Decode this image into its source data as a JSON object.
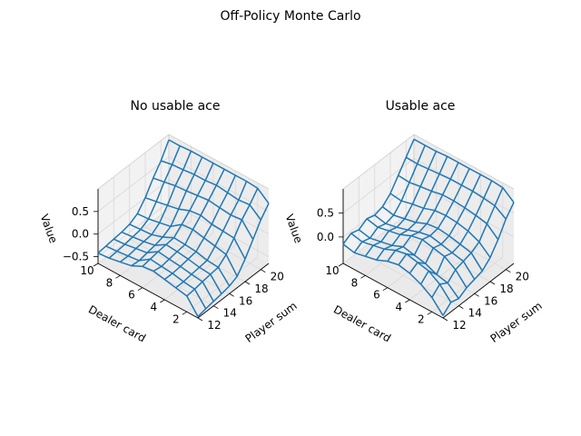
{
  "figure": {
    "suptitle": "Off-Policy Monte Carlo"
  },
  "chart_data": [
    {
      "type": "surface",
      "title": "No usable ace",
      "xlabel": "Dealer card",
      "ylabel": "Player sum",
      "zlabel": "Value",
      "x_ticks": [
        "10",
        "8",
        "6",
        "4",
        "2"
      ],
      "y_ticks": [
        "12",
        "14",
        "16",
        "18",
        "20"
      ],
      "z_ticks": [
        "0.5",
        "0.0",
        "−0.5"
      ],
      "dealer_cards": [
        1,
        2,
        3,
        4,
        5,
        6,
        7,
        8,
        9,
        10
      ],
      "player_sums": [
        12,
        13,
        14,
        15,
        16,
        17,
        18,
        19,
        20,
        21
      ],
      "zlim": [
        -0.65,
        1.0
      ],
      "values": [
        [
          -0.62,
          -0.58,
          -0.55,
          -0.52,
          -0.48,
          -0.4,
          -0.15,
          0.15,
          0.45,
          0.68
        ],
        [
          -0.3,
          -0.28,
          -0.25,
          -0.22,
          -0.2,
          -0.05,
          0.18,
          0.45,
          0.65,
          0.88
        ],
        [
          -0.25,
          -0.25,
          -0.22,
          -0.2,
          -0.18,
          0.0,
          0.2,
          0.42,
          0.62,
          0.9
        ],
        [
          -0.2,
          -0.2,
          -0.18,
          -0.15,
          -0.12,
          0.05,
          0.22,
          0.45,
          0.65,
          0.9
        ],
        [
          -0.15,
          -0.18,
          -0.15,
          -0.12,
          -0.1,
          0.1,
          0.28,
          0.48,
          0.68,
          0.9
        ],
        [
          -0.18,
          -0.15,
          -0.12,
          -0.1,
          -0.08,
          0.08,
          0.25,
          0.45,
          0.65,
          0.9
        ],
        [
          -0.3,
          -0.32,
          -0.28,
          -0.25,
          -0.2,
          -0.1,
          0.15,
          0.42,
          0.65,
          0.9
        ],
        [
          -0.35,
          -0.35,
          -0.32,
          -0.3,
          -0.28,
          -0.15,
          0.1,
          0.4,
          0.62,
          0.9
        ],
        [
          -0.4,
          -0.38,
          -0.36,
          -0.33,
          -0.3,
          -0.2,
          0.05,
          0.35,
          0.6,
          0.88
        ],
        [
          -0.42,
          -0.4,
          -0.38,
          -0.36,
          -0.32,
          -0.22,
          0.0,
          0.3,
          0.55,
          0.88
        ]
      ]
    },
    {
      "type": "surface",
      "title": "Usable ace",
      "xlabel": "Dealer card",
      "ylabel": "Player sum",
      "zlabel": "Value",
      "x_ticks": [
        "10",
        "8",
        "6",
        "4",
        "2"
      ],
      "y_ticks": [
        "12",
        "14",
        "16",
        "18",
        "20"
      ],
      "z_ticks": [
        "0.5",
        "0.0"
      ],
      "dealer_cards": [
        1,
        2,
        3,
        4,
        5,
        6,
        7,
        8,
        9,
        10
      ],
      "player_sums": [
        12,
        13,
        14,
        15,
        16,
        17,
        18,
        19,
        20,
        21
      ],
      "zlim": [
        -0.55,
        1.0
      ],
      "values": [
        [
          -0.5,
          -0.35,
          -0.4,
          -0.3,
          -0.25,
          -0.2,
          -0.05,
          0.2,
          0.5,
          0.72
        ],
        [
          -0.25,
          -0.1,
          -0.2,
          -0.05,
          0.0,
          0.05,
          0.15,
          0.4,
          0.65,
          0.9
        ],
        [
          -0.1,
          0.05,
          -0.15,
          0.1,
          0.05,
          0.1,
          0.25,
          0.45,
          0.68,
          0.92
        ],
        [
          0.0,
          0.1,
          -0.05,
          0.15,
          0.1,
          0.15,
          0.3,
          0.48,
          0.7,
          0.92
        ],
        [
          0.05,
          0.15,
          0.0,
          0.2,
          0.15,
          0.18,
          0.32,
          0.5,
          0.7,
          0.92
        ],
        [
          0.0,
          0.1,
          0.05,
          0.15,
          0.1,
          0.15,
          0.3,
          0.5,
          0.7,
          0.92
        ],
        [
          -0.1,
          0.0,
          -0.05,
          0.05,
          0.02,
          0.05,
          0.22,
          0.45,
          0.68,
          0.92
        ],
        [
          -0.15,
          -0.05,
          -0.1,
          0.0,
          -0.05,
          0.0,
          0.18,
          0.42,
          0.66,
          0.9
        ],
        [
          -0.2,
          -0.1,
          -0.15,
          -0.05,
          -0.1,
          -0.05,
          0.12,
          0.38,
          0.64,
          0.9
        ],
        [
          -0.15,
          -0.05,
          -0.1,
          0.0,
          -0.05,
          0.0,
          0.15,
          0.4,
          0.65,
          0.9
        ]
      ]
    }
  ],
  "style": {
    "line_color": "#1f77b4",
    "pane_color": "#f2f2f2",
    "grid_color": "#d8d8d8"
  }
}
